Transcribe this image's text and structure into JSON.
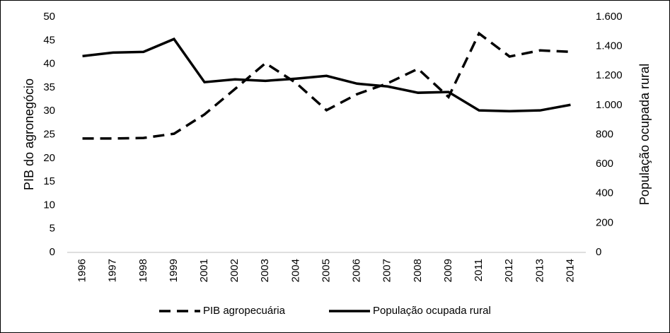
{
  "chart_data": {
    "type": "line",
    "categories": [
      "1996",
      "1997",
      "1998",
      "1999",
      "2001",
      "2002",
      "2003",
      "2004",
      "2005",
      "2006",
      "2007",
      "2008",
      "2009",
      "2011",
      "2012",
      "2013",
      "2014"
    ],
    "y_label": "PIB do agronegócio",
    "y2_label": "População ocupada rural",
    "ylim": [
      0,
      50
    ],
    "yticks": [
      0,
      5,
      10,
      15,
      20,
      25,
      30,
      35,
      40,
      45,
      50
    ],
    "y2lim": [
      0,
      1600
    ],
    "y2ticks": [
      0,
      200,
      400,
      600,
      800,
      {
        "value": 1000,
        "label": "1.000"
      },
      {
        "value": 1200,
        "label": "1.200"
      },
      {
        "value": 1400,
        "label": "1.400"
      },
      {
        "value": 1600,
        "label": "1.600"
      }
    ],
    "legend": "bottom",
    "series": [
      {
        "name": "PIB agropecuária",
        "color": "#000000",
        "style": "dashed",
        "values": [
          24.2,
          24.2,
          24.3,
          25.2,
          29.3,
          34.7,
          40.2,
          36.0,
          30.2,
          33.6,
          35.9,
          39.0,
          33.0,
          46.5,
          41.6,
          42.9,
          42.6
        ]
      },
      {
        "name": "População ocupada rural",
        "color": "#000000",
        "style": "solid",
        "axis": "y2",
        "values": [
          1334,
          1358,
          1363,
          1450,
          1157,
          1176,
          1166,
          1181,
          1200,
          1147,
          1128,
          1085,
          1090,
          965,
          960,
          965,
          1003
        ]
      }
    ]
  }
}
